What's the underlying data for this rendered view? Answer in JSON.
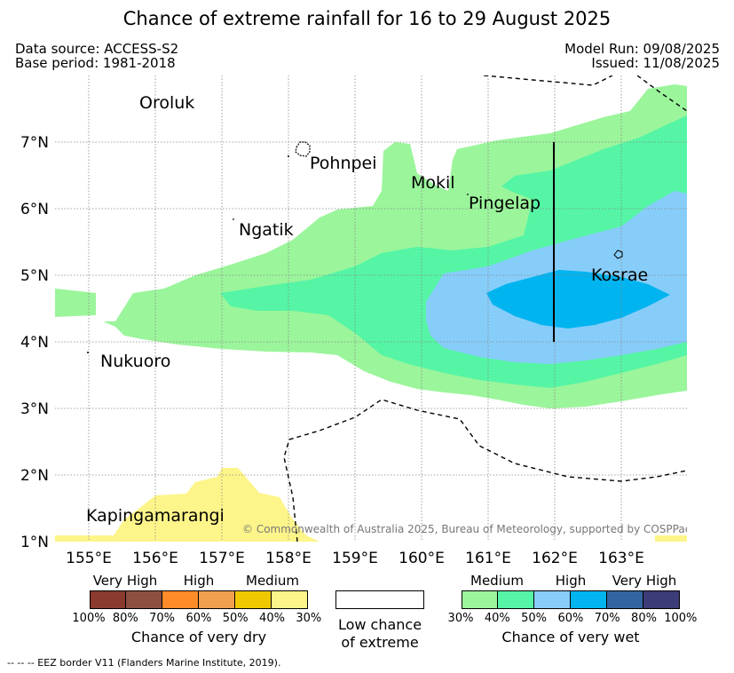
{
  "title": "Chance of extreme rainfall for 16 to 29 August 2025",
  "data_source": "Data source: ACCESS-S2",
  "base_period": "Base period: 1981-2018",
  "model_run": "Model Run: 09/08/2025",
  "issued": "Issued: 11/08/2025",
  "copyright": "© Commonwealth of Australia 2025, Bureau of Meteorology, supported by COSPPac",
  "footer_note": "--  --  -- EEZ border V11 (Flanders Marine Institute, 2019).",
  "axes": {
    "lon_labels": [
      "155°E",
      "156°E",
      "157°E",
      "158°E",
      "159°E",
      "160°E",
      "161°E",
      "162°E",
      "163°E"
    ],
    "lat_labels": [
      "7°N",
      "6°N",
      "5°N",
      "4°N",
      "3°N",
      "2°N",
      "1°N"
    ]
  },
  "places": {
    "oroluk": "Oroluk",
    "pohnpei": "Pohnpei",
    "mokil": "Mokil",
    "pingelap": "Pingelap",
    "ngatik": "Ngatik",
    "kosrae": "Kosrae",
    "nukuoro": "Nukuoro",
    "kapingamarangi": "Kapingamarangi"
  },
  "legend": {
    "dry": {
      "categories": [
        "Very High",
        "High",
        "Medium"
      ],
      "colors": [
        "#8b3a2f",
        "#8c5040",
        "#ff8c28",
        "#f0a050",
        "#f0c800",
        "#fef58a"
      ],
      "ticks": [
        "100%",
        "80%",
        "70%",
        "60%",
        "50%",
        "40%",
        "30%"
      ],
      "caption": "Chance of very dry"
    },
    "low": {
      "color": "#ffffff",
      "line1": "Low chance",
      "line2": "of extreme"
    },
    "wet": {
      "categories": [
        "Medium",
        "High",
        "Very High"
      ],
      "colors": [
        "#9bf59b",
        "#55f5a5",
        "#87cdfa",
        "#00b4f0",
        "#3264a0",
        "#3c3c78"
      ],
      "ticks": [
        "30%",
        "40%",
        "50%",
        "60%",
        "70%",
        "80%",
        "100%"
      ],
      "caption": "Chance of very wet"
    }
  }
}
